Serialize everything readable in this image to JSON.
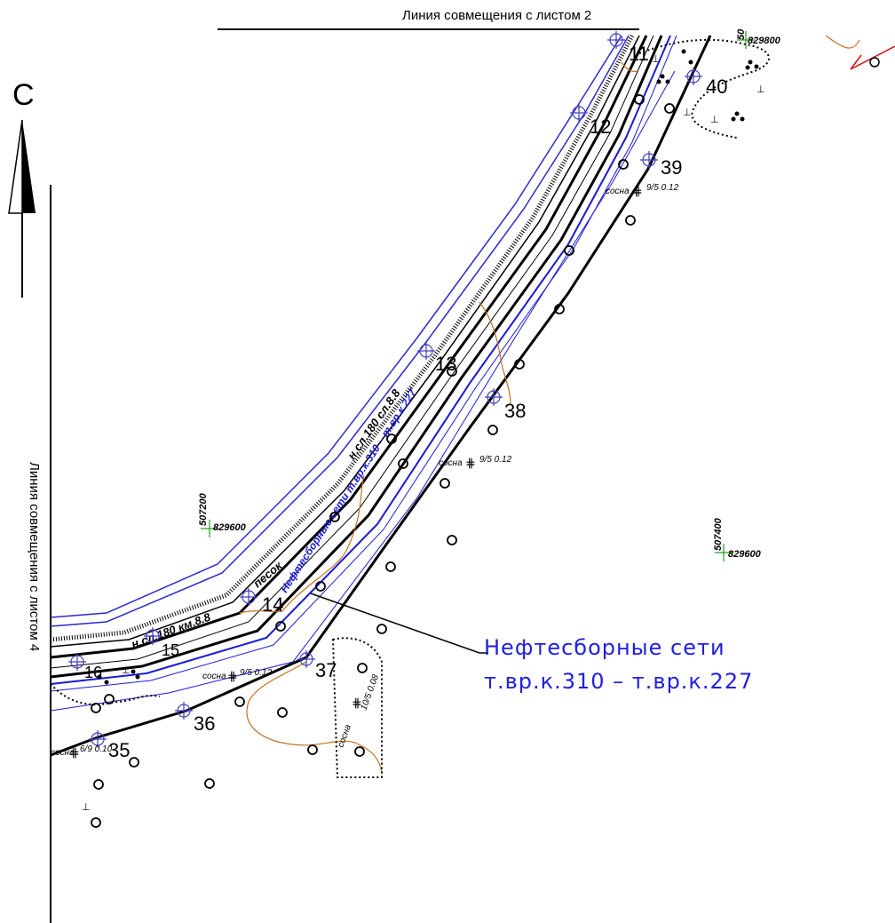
{
  "match_line_top": "Линия совмещения с листом 2",
  "match_line_left": "Линия совмещения с листом 4",
  "north_label": "С",
  "callout_line1": "Нефтесборные сети",
  "callout_line2": "т.вр.к.310 – т.вр.к.227",
  "pipeline_label": "Нефтесборные сети т.вр.к.310 – т.вр.к.227",
  "points": [
    "11",
    "12",
    "13",
    "14",
    "15",
    "16",
    "35",
    "36",
    "37",
    "38",
    "39",
    "40"
  ],
  "coords": {
    "c1": {
      "y": "507200",
      "x": "829600"
    },
    "c2": {
      "y": "507400",
      "x": "829600"
    },
    "c3": {
      "y": "50",
      "x": "829800"
    }
  },
  "labels": {
    "road1": "н.сл.180 сл.8.8",
    "road2": "н.сл.180 км.8.8",
    "pesok": "песок",
    "sosna": "сосна",
    "tree1": "9/5 0.12",
    "tree2": "9/5 0.12",
    "tree3": "9/5 0.12",
    "tree4": "6/9 0.10",
    "tree5": "10/5 0.08"
  }
}
